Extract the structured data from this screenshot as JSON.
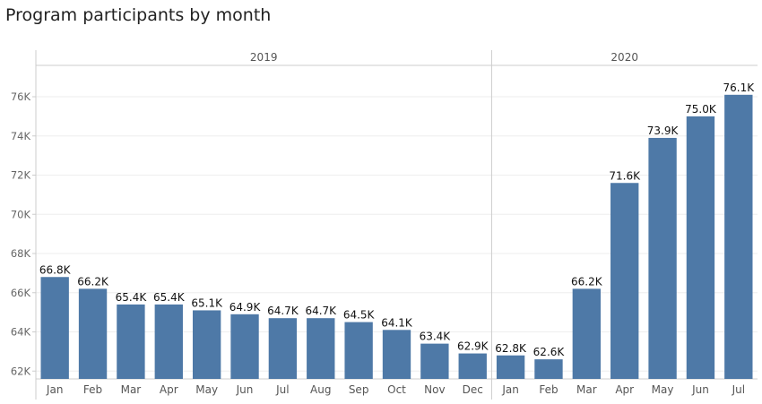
{
  "chart_data": {
    "type": "bar",
    "title": "Program participants by month",
    "xlabel": "",
    "ylabel": "",
    "ylim": [
      61.6,
      77.6
    ],
    "yticks": [
      62,
      64,
      66,
      68,
      70,
      72,
      74,
      76
    ],
    "ytick_labels": [
      "62K",
      "64K",
      "66K",
      "68K",
      "70K",
      "72K",
      "74K",
      "76K"
    ],
    "grid": true,
    "color": "#4e79a7",
    "groups": [
      {
        "name": "2019",
        "categories": [
          "Jan",
          "Feb",
          "Mar",
          "Apr",
          "May",
          "Jun",
          "Jul",
          "Aug",
          "Sep",
          "Oct",
          "Nov",
          "Dec"
        ],
        "values": [
          66.8,
          66.2,
          65.4,
          65.4,
          65.1,
          64.9,
          64.7,
          64.7,
          64.5,
          64.1,
          63.4,
          62.9
        ],
        "labels": [
          "66.8K",
          "66.2K",
          "65.4K",
          "65.4K",
          "65.1K",
          "64.9K",
          "64.7K",
          "64.7K",
          "64.5K",
          "64.1K",
          "63.4K",
          "62.9K"
        ]
      },
      {
        "name": "2020",
        "categories": [
          "Jan",
          "Feb",
          "Mar",
          "Apr",
          "May",
          "Jun",
          "Jul"
        ],
        "values": [
          62.8,
          62.6,
          66.2,
          71.6,
          73.9,
          75.0,
          76.1
        ],
        "labels": [
          "62.8K",
          "62.6K",
          "66.2K",
          "71.6K",
          "73.9K",
          "75.0K",
          "76.1K"
        ]
      }
    ]
  }
}
